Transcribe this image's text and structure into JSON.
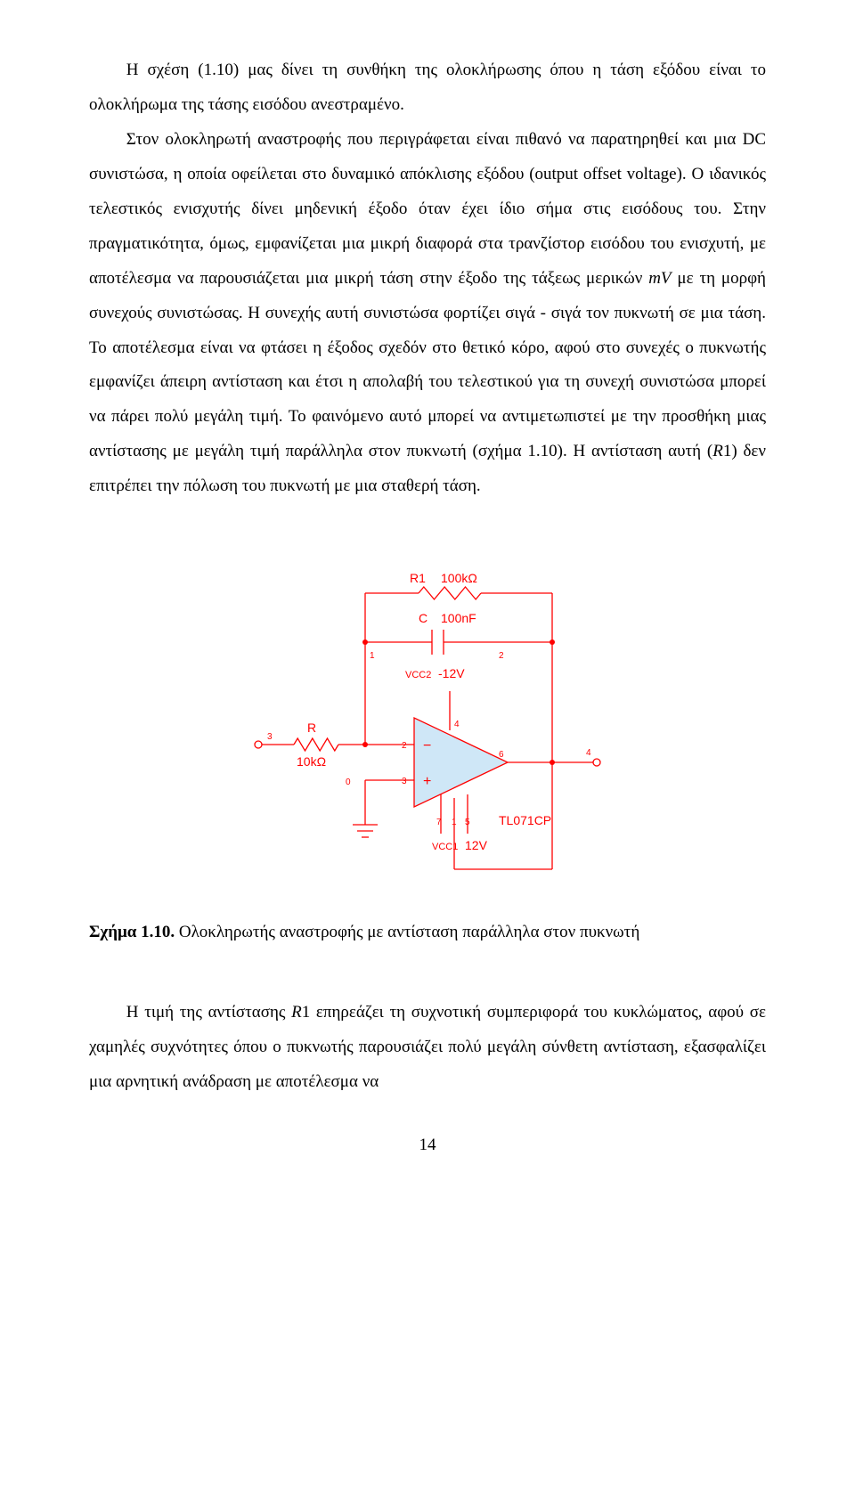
{
  "paragraphs": {
    "p1_a": "Η σχέση (1.10) μας δίνει τη συνθήκη της ολοκλήρωσης όπου η τάση εξόδου είναι το ολοκλήρωμα της τάσης εισόδου ανεστραμένο.",
    "p2_a": "Στον ολοκληρωτή αναστροφής που περιγράφεται είναι πιθανό να παρατηρηθεί και μια DC συνιστώσα, η οποία οφείλεται στο δυναμικό απόκλισης εξόδου (output offset voltage). Ο ιδανικός τελεστικός ενισχυτής δίνει μηδενική έξοδο όταν έχει ίδιο σήμα στις εισόδους του. Στην πραγματικότητα, όμως, εμφανίζεται μια μικρή διαφορά στα τρανζίστορ εισόδου του ενισχυτή, με αποτέλεσμα να παρουσιάζεται μια μικρή τάση στην έξοδο της τάξεως μερικών ",
    "p2_mv": "mV",
    "p2_b": " με τη μορφή συνεχούς συνιστώσας. Η συνεχής αυτή συνιστώσα φορτίζει σιγά - σιγά τον πυκνωτή σε μια τάση. Το αποτέλεσμα είναι να φτάσει η έξοδος σχεδόν στο θετικό κόρο, αφού στο συνεχές ο πυκνωτής εμφανίζει άπειρη αντίσταση και έτσι η απολαβή του τελεστικού για τη συνεχή συνιστώσα μπορεί να πάρει πολύ μεγάλη τιμή. Το φαινόμενο αυτό μπορεί να αντιμετωπιστεί με την προσθήκη μιας αντίστασης με μεγάλη τιμή παράλληλα στον πυκνωτή (σχήμα 1.10). Η αντίσταση αυτή (",
    "p2_r1": "R",
    "p2_r1num": "1",
    "p2_c": ") δεν επιτρέπει την πόλωση του πυκνωτή με μια σταθερή τάση.",
    "p3_a": "Η τιμή της αντίστασης ",
    "p3_b": "1 επηρεάζει τη συχνοτική συμπεριφορά του κυκλώματος, αφού σε χαμηλές συχνότητες όπου ο πυκνωτής παρουσιάζει πολύ μεγάλη σύνθετη αντίσταση, εξασφαλίζει μια αρνητική ανάδραση με αποτέλεσμα να"
  },
  "circuit": {
    "colors": {
      "wire": "#ff0000",
      "fill_opamp": "#cfe7f7",
      "fill_res": "#ffffff",
      "fill_junction": "#ff0000",
      "text": "#ff0000"
    },
    "labels": {
      "r1": "R1",
      "r1_val": "100kΩ",
      "c": "C",
      "c_val": "100nF",
      "r": "R",
      "r_val": "10kΩ",
      "vcc2": "VCC2",
      "vcc2_val": "-12V",
      "vcc1": "VCC1",
      "vcc1_val": "12V",
      "opamp": "TL071CP",
      "node1": "1",
      "node2": "2",
      "node3": "3",
      "node4": "4",
      "node5": "5",
      "node6": "6",
      "node7": "7",
      "node0": "0",
      "minus": "−",
      "plus": "+"
    },
    "font_sizes": {
      "label": 14,
      "small": 11,
      "pin": 10,
      "sign": 16
    },
    "stroke_width": 1.3
  },
  "caption": {
    "bold": "Σχήμα 1.10.",
    "rest": " Ολοκληρωτής αναστροφής με αντίσταση παράλληλα στον πυκνωτή"
  },
  "page_number": "14"
}
